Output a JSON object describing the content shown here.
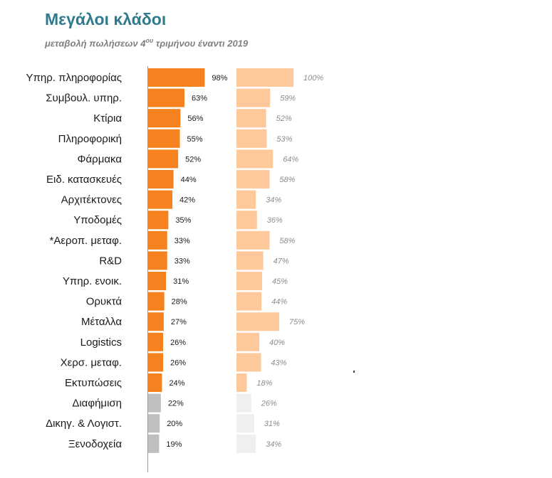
{
  "title": "Μεγάλοι κλάδοι",
  "subtitle": {
    "prefix": "μεταβολή πωλήσεων 4",
    "superscript": "ου",
    "suffix": " τριμήνου έναντι 2019"
  },
  "colors": {
    "series1_highlight": "#f5821f",
    "series1_muted": "#bfbfbf",
    "series2_highlight": "#fdc89a",
    "series2_muted": "#efefef",
    "axis": "#9a9a9a",
    "label_dark": "#1a1a1a",
    "label_grey": "#8c8c8c"
  },
  "chart_data": {
    "type": "bar",
    "orientation": "horizontal",
    "categories": [
      "Υπηρ. πληροφορίας",
      "Συμβουλ. υπηρ.",
      "Κτίρια",
      "Πληροφορική",
      "Φάρμακα",
      "Ειδ. κατασκευές",
      "Αρχιτέκτονες",
      "Υποδομές",
      "*Αεροπ. μεταφ.",
      "R&D",
      "Υπηρ. ενοικ.",
      "Ορυκτά",
      "Μέταλλα",
      "Logistics",
      "Χερσ. μεταφ.",
      "Εκτυπώσεις",
      "Διαφήμιση",
      "Δικηγ. & Λογιστ.",
      "Ξενοδοχεία"
    ],
    "series": [
      {
        "values": [
          98,
          63,
          56,
          55,
          52,
          44,
          42,
          35,
          33,
          33,
          31,
          28,
          27,
          26,
          26,
          24,
          22,
          20,
          19
        ],
        "labels": [
          "98%",
          "63%",
          "56%",
          "55%",
          "52%",
          "44%",
          "42%",
          "35%",
          "33%",
          "33%",
          "31%",
          "28%",
          "27%",
          "26%",
          "26%",
          "24%",
          "22%",
          "20%",
          "19%"
        ]
      },
      {
        "values": [
          100,
          59,
          52,
          53,
          64,
          58,
          34,
          36,
          58,
          47,
          45,
          44,
          75,
          40,
          43,
          18,
          26,
          31,
          34
        ],
        "labels": [
          "100%",
          "59%",
          "52%",
          "53%",
          "64%",
          "58%",
          "34%",
          "36%",
          "58%",
          "47%",
          "45%",
          "44%",
          "75%",
          "40%",
          "43%",
          "18%",
          "26%",
          "31%",
          "34%"
        ]
      }
    ],
    "muted_from_index": 16,
    "xlim": [
      0,
      100
    ],
    "grid": false,
    "legend": "none"
  }
}
